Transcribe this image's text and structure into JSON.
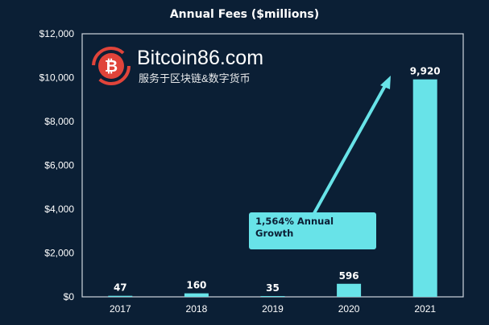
{
  "chart_data": {
    "type": "bar",
    "title": "Annual Fees ($millions)",
    "categories": [
      "2017",
      "2018",
      "2019",
      "2020",
      "2021"
    ],
    "values": [
      47,
      160,
      35,
      596,
      9920
    ],
    "data_labels": [
      "47",
      "160",
      "35",
      "596",
      "9,920"
    ],
    "ylim": [
      0,
      12000
    ],
    "yticks": [
      0,
      2000,
      4000,
      6000,
      8000,
      10000,
      12000
    ],
    "ytick_labels": [
      "$0",
      "$2,000",
      "$4,000",
      "$6,000",
      "$8,000",
      "$10,000",
      "$12,000"
    ],
    "xlabel": "",
    "ylabel": "",
    "grid": false,
    "annotation": "1,564% Annual Growth",
    "colors": {
      "background": "#0b1f35",
      "bar": "#68e3e8",
      "text": "#ffffff",
      "axis": "#ffffff"
    }
  },
  "watermark": {
    "text": "Bitcoin86.com",
    "subtext": "服务于区块链&数字货币"
  }
}
